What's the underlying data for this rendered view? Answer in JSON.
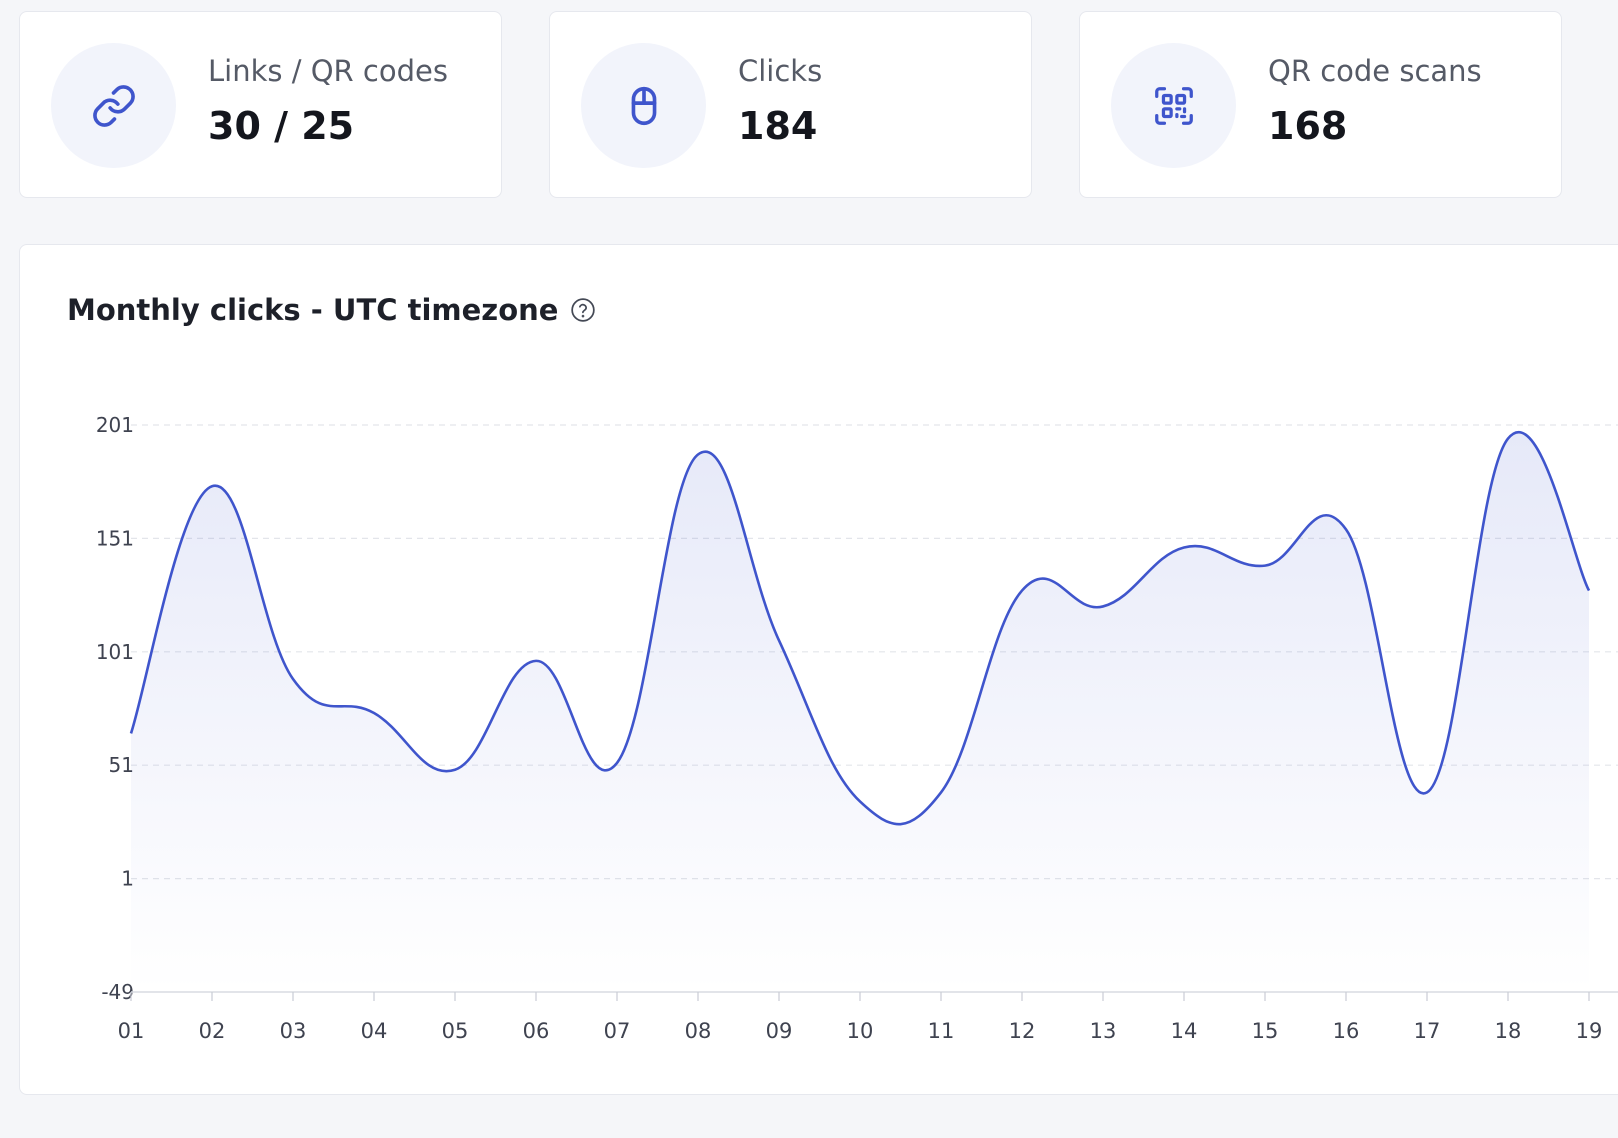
{
  "stats": [
    {
      "label": "Links / QR codes",
      "value": "30 / 25",
      "icon": "link-icon"
    },
    {
      "label": "Clicks",
      "value": "184",
      "icon": "mouse-icon"
    },
    {
      "label": "QR code scans",
      "value": "168",
      "icon": "qr-code-icon"
    }
  ],
  "chart": {
    "title": "Monthly clicks - UTC timezone",
    "help_icon": "help-circle-icon"
  },
  "colors": {
    "accent": "#3f55cc",
    "icon_bg": "#f2f4fb"
  },
  "chart_data": {
    "type": "area",
    "x": [
      "01",
      "02",
      "03",
      "04",
      "05",
      "06",
      "07",
      "08",
      "09",
      "10",
      "11",
      "12",
      "13",
      "14",
      "15",
      "16",
      "17",
      "18",
      "19"
    ],
    "values": [
      65,
      174,
      89,
      74,
      49,
      97,
      52,
      188,
      106,
      35,
      39,
      128,
      121,
      147,
      139,
      155,
      39,
      195,
      128
    ],
    "y_ticks": [
      201,
      151,
      101,
      51,
      1,
      -49
    ],
    "ylim": [
      -49,
      201
    ],
    "grid": true,
    "title": "Monthly clicks - UTC timezone",
    "xlabel": "",
    "ylabel": ""
  }
}
